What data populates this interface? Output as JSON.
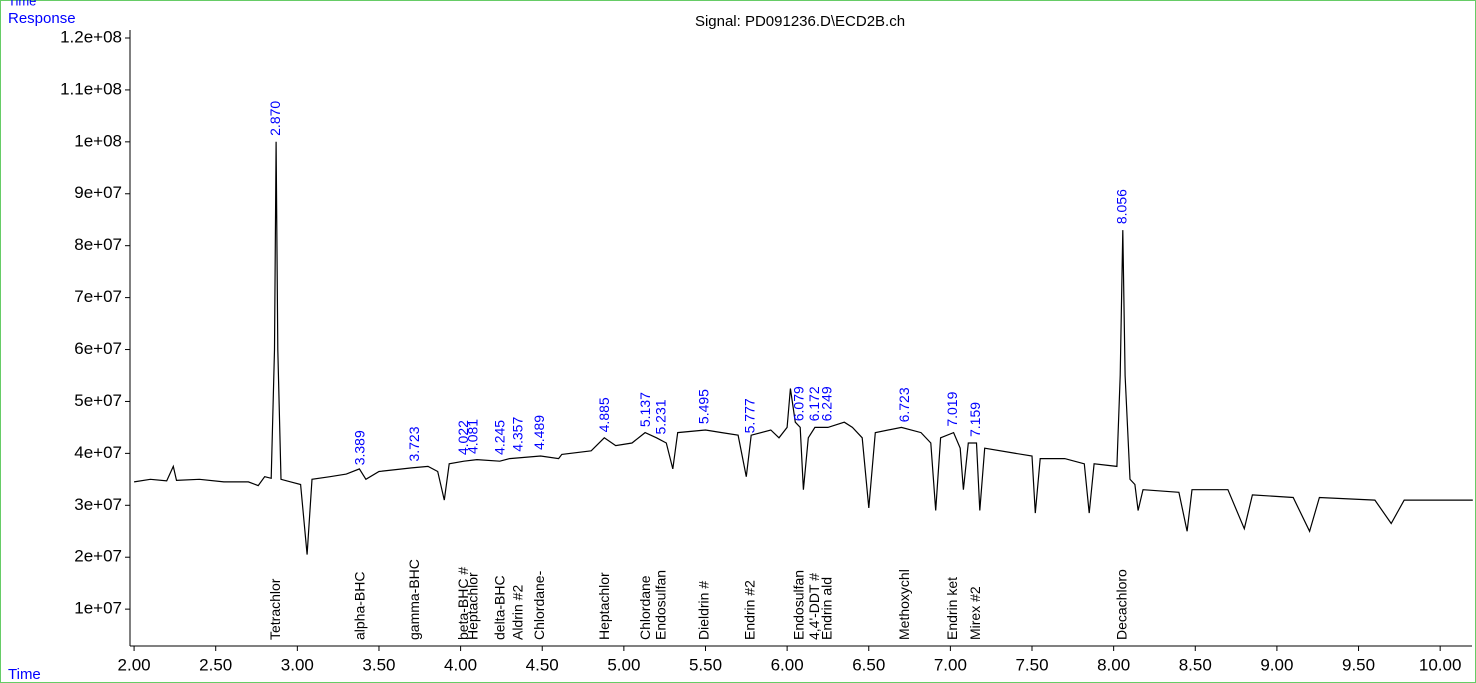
{
  "chart_data": {
    "type": "line",
    "title": "Signal: PD091236.D\\ECD2B.ch",
    "corner_label": "Time",
    "y_label": "Response",
    "x_label": "Time",
    "x": [
      2.0,
      2.1,
      2.2,
      2.24,
      2.26,
      2.4,
      2.55,
      2.7,
      2.76,
      2.8,
      2.84,
      2.86,
      2.87,
      2.88,
      2.9,
      2.96,
      3.02,
      3.06,
      3.09,
      3.2,
      3.3,
      3.38,
      3.42,
      3.5,
      3.7,
      3.8,
      3.86,
      3.9,
      3.93,
      4.02,
      4.1,
      4.24,
      4.3,
      4.49,
      4.6,
      4.62,
      4.8,
      4.88,
      4.95,
      5.05,
      5.13,
      5.2,
      5.26,
      5.3,
      5.33,
      5.5,
      5.6,
      5.7,
      5.75,
      5.78,
      5.9,
      5.95,
      6.0,
      6.02,
      6.05,
      6.08,
      6.1,
      6.13,
      6.17,
      6.25,
      6.35,
      6.4,
      6.46,
      6.5,
      6.54,
      6.7,
      6.82,
      6.88,
      6.91,
      6.94,
      7.02,
      7.06,
      7.08,
      7.11,
      7.16,
      7.18,
      7.21,
      7.4,
      7.5,
      7.52,
      7.55,
      7.7,
      7.82,
      7.85,
      7.88,
      8.02,
      8.04,
      8.056,
      8.07,
      8.1,
      8.13,
      8.15,
      8.18,
      8.4,
      8.45,
      8.48,
      8.7,
      8.8,
      8.85,
      9.1,
      9.2,
      9.26,
      9.6,
      9.7,
      9.78,
      10.2
    ],
    "series": [
      {
        "color": "#000000",
        "values": [
          34500000,
          35000000,
          34700000,
          37500000,
          34800000,
          35000000,
          34500000,
          34500000,
          33800000,
          35500000,
          35200000,
          60000000,
          100000000,
          60000000,
          35000000,
          34500000,
          34000000,
          20500000,
          35000000,
          35500000,
          36000000,
          37000000,
          35000000,
          36500000,
          37200000,
          37500000,
          36500000,
          31000000,
          38000000,
          38500000,
          38800000,
          38500000,
          39000000,
          39500000,
          39000000,
          39800000,
          40500000,
          43000000,
          41500000,
          42000000,
          44000000,
          43000000,
          42000000,
          37000000,
          44000000,
          44500000,
          44000000,
          43500000,
          35500000,
          43500000,
          44500000,
          43000000,
          45000000,
          52500000,
          46000000,
          45000000,
          33000000,
          43000000,
          45000000,
          45000000,
          46000000,
          45000000,
          43000000,
          29500000,
          44000000,
          45000000,
          44000000,
          42000000,
          29000000,
          43000000,
          44000000,
          41000000,
          33000000,
          42000000,
          42000000,
          29000000,
          41000000,
          40000000,
          39500000,
          28500000,
          39000000,
          39000000,
          38000000,
          28500000,
          38000000,
          37500000,
          55000000,
          83000000,
          55000000,
          35000000,
          34000000,
          29000000,
          33000000,
          32500000,
          25000000,
          33000000,
          33000000,
          25500000,
          32000000,
          31500000,
          25000000,
          31500000,
          31000000,
          26500000,
          31000000,
          31000000
        ]
      }
    ],
    "peaks": {
      "times": [
        2.87,
        3.389,
        3.723,
        4.022,
        4.081,
        4.245,
        4.357,
        4.489,
        4.885,
        5.137,
        5.231,
        5.495,
        5.777,
        6.079,
        6.172,
        6.249,
        6.723,
        7.019,
        7.159,
        8.056
      ],
      "value_labels": [
        "2.870",
        "3.389",
        "3.723",
        "4.022",
        "4.081",
        "4.245",
        "4.357",
        "4.489",
        "4.885",
        "5.137",
        "5.231",
        "5.495",
        "5.777",
        "6.079",
        "6.172",
        "6.249",
        "6.723",
        "7.019",
        "7.159",
        "8.056"
      ],
      "names": [
        "Tetrachlor",
        "alpha-BHC",
        "gamma-BHC",
        "beta-BHC #",
        "Heptachlor",
        "delta-BHC",
        "Aldrin #2",
        "Chlordane-",
        "Heptachlor",
        "Chlordane",
        "Endosulfan",
        "Dieldrin #",
        "Endrin #2",
        "Endosulfan",
        "4,4'-DDT #",
        "Endrin ald",
        "Methoxychl",
        "Endrin ket",
        "Mirex #2",
        "Decachloro"
      ],
      "color": "#0000ff"
    },
    "xlim": [
      1.975,
      10.195
    ],
    "ylim": [
      2900000,
      120000000
    ],
    "xticks": [
      {
        "value": 2,
        "label": "2.00"
      },
      {
        "value": 2.5,
        "label": "2.50"
      },
      {
        "value": 3,
        "label": "3.00"
      },
      {
        "value": 3.5,
        "label": "3.50"
      },
      {
        "value": 4,
        "label": "4.00"
      },
      {
        "value": 4.5,
        "label": "4.50"
      },
      {
        "value": 5,
        "label": "5.00"
      },
      {
        "value": 5.5,
        "label": "5.50"
      },
      {
        "value": 6,
        "label": "6.00"
      },
      {
        "value": 6.5,
        "label": "6.50"
      },
      {
        "value": 7,
        "label": "7.00"
      },
      {
        "value": 7.5,
        "label": "7.50"
      },
      {
        "value": 8,
        "label": "8.00"
      },
      {
        "value": 8.5,
        "label": "8.50"
      },
      {
        "value": 9,
        "label": "9.00"
      },
      {
        "value": 9.5,
        "label": "9.50"
      },
      {
        "value": 10,
        "label": "10.00"
      }
    ],
    "yticks": [
      {
        "value": 10000000,
        "label": "1e+07"
      },
      {
        "value": 20000000,
        "label": "2e+07"
      },
      {
        "value": 30000000,
        "label": "3e+07"
      },
      {
        "value": 40000000,
        "label": "4e+07"
      },
      {
        "value": 50000000,
        "label": "5e+07"
      },
      {
        "value": 60000000,
        "label": "6e+07"
      },
      {
        "value": 70000000,
        "label": "7e+07"
      },
      {
        "value": 80000000,
        "label": "8e+07"
      },
      {
        "value": 90000000,
        "label": "9e+07"
      },
      {
        "value": 100000000,
        "label": "1e+08"
      },
      {
        "value": 110000000,
        "label": "1.1e+08"
      },
      {
        "value": 120000000,
        "label": "1.2e+08"
      }
    ]
  }
}
